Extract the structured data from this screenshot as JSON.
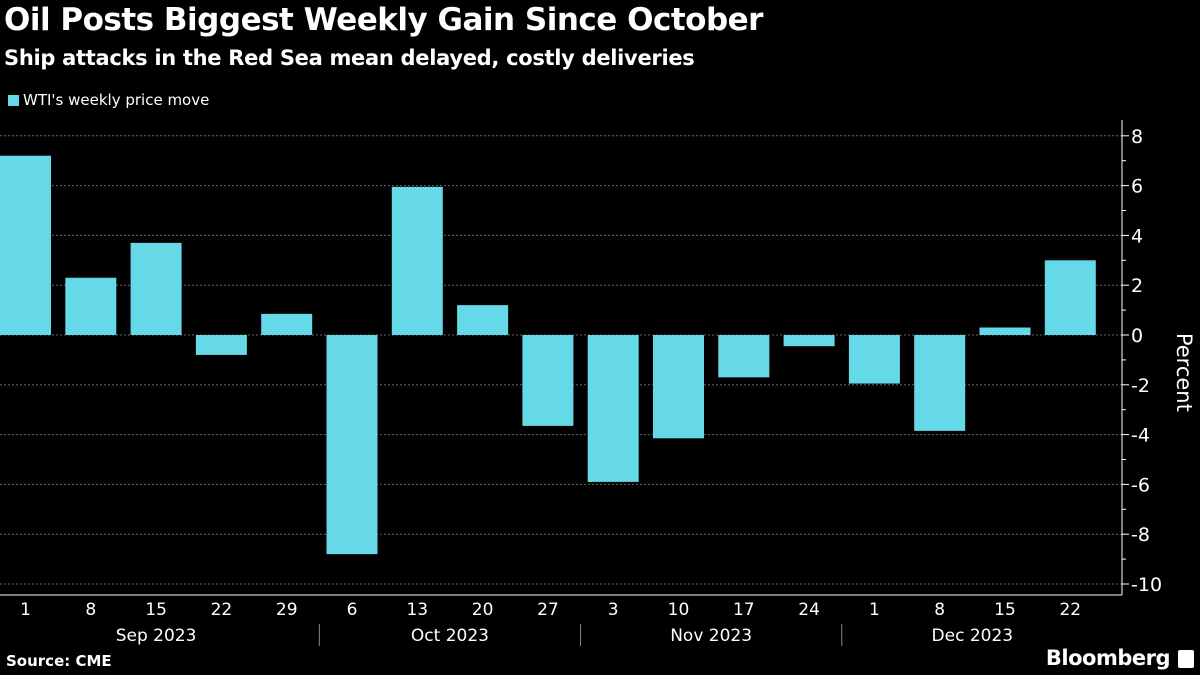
{
  "title": "Oil Posts Biggest Weekly Gain Since October",
  "subtitle": "Ship attacks in the Red Sea mean delayed, costly deliveries",
  "source": "Source: CME",
  "brand": "Bloomberg",
  "colors": {
    "bar": "#66d9e8",
    "background": "#000000",
    "grid": "#666666"
  },
  "chart_data": {
    "type": "bar",
    "legend": [
      {
        "name": "WTI's weekly price move"
      }
    ],
    "series": [
      {
        "name": "WTI's weekly price move",
        "values": [
          7.2,
          2.3,
          3.7,
          -0.8,
          0.85,
          -8.8,
          5.95,
          1.2,
          -3.65,
          -5.9,
          -4.15,
          -1.7,
          -0.45,
          -1.95,
          -3.85,
          0.3,
          3.0
        ]
      }
    ],
    "categories": [
      "1",
      "8",
      "15",
      "22",
      "29",
      "6",
      "13",
      "20",
      "27",
      "3",
      "10",
      "17",
      "24",
      "1",
      "8",
      "15",
      "22"
    ],
    "month_groups": [
      {
        "label": "Sep 2023",
        "count": 5
      },
      {
        "label": "Oct 2023",
        "count": 4
      },
      {
        "label": "Nov 2023",
        "count": 4
      },
      {
        "label": "Dec 2023",
        "count": 4
      }
    ],
    "ylabel": "Percent",
    "ylim": [
      -10.4,
      8.8
    ],
    "yticks": [
      8,
      6,
      4,
      2,
      0,
      -2,
      -4,
      -6,
      -8,
      -10
    ],
    "y_axis_side": "right",
    "grid": true,
    "legend_placement": "top-left"
  }
}
